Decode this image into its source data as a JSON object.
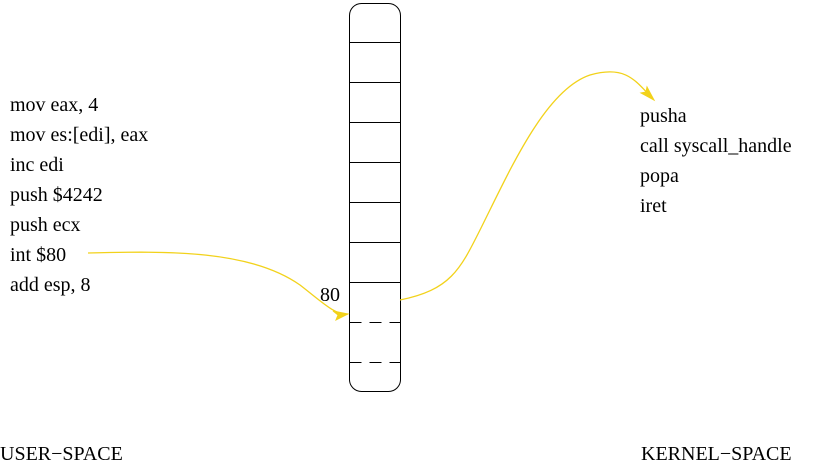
{
  "user_code": [
    "mov eax, 4",
    "mov es:[edi], eax",
    "inc edi",
    "push $4242",
    "push ecx",
    "int $80",
    "add esp, 8"
  ],
  "kernel_code": [
    "pusha",
    "call syscall_handle",
    "popa",
    "iret"
  ],
  "table_entry_label": "80",
  "user_space_label": "USER−SPACE",
  "kernel_space_label": "KERNEL−SPACE",
  "colors": {
    "arrow": "#f2d21b",
    "line": "#000000"
  }
}
